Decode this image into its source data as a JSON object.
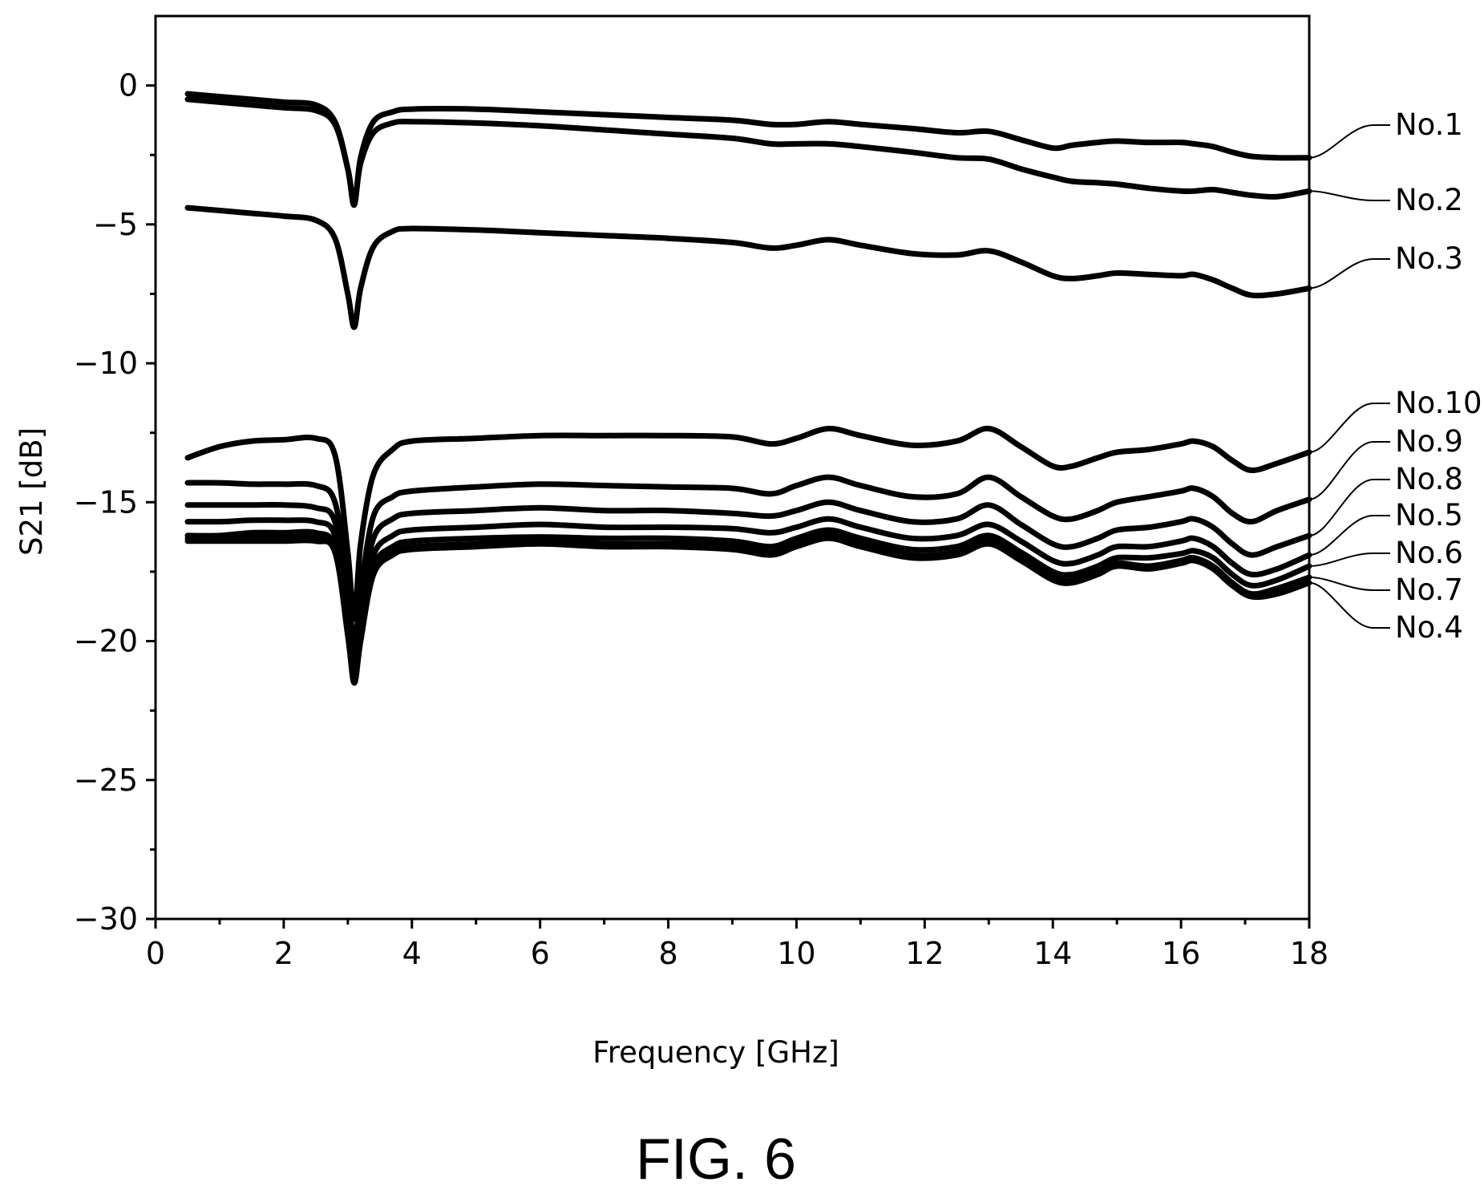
{
  "figure_caption": "FIG. 6",
  "chart_data": {
    "type": "line",
    "title": "",
    "xlabel": "Frequency [GHz]",
    "ylabel": "S21 [dB]",
    "xlim": [
      0,
      18
    ],
    "ylim": [
      -30,
      2.5
    ],
    "x_ticks": [
      0,
      2,
      4,
      6,
      8,
      10,
      12,
      14,
      16,
      18
    ],
    "x_tick_labels": [
      "0",
      "2",
      "4",
      "6",
      "8",
      "10",
      "12",
      "14",
      "16",
      "18"
    ],
    "x_minor_step": 1,
    "y_ticks": [
      0,
      -5,
      -10,
      -15,
      -20,
      -25,
      -30
    ],
    "y_tick_labels": [
      "0",
      "−5",
      "−10",
      "−15",
      "−20",
      "−25",
      "−30"
    ],
    "y_minor_step": 2.5,
    "grid": false,
    "legend": "direct labels at right",
    "x": [
      0.5,
      1.0,
      1.5,
      2.0,
      2.5,
      2.8,
      3.0,
      3.1,
      3.2,
      3.4,
      3.7,
      4.0,
      5.0,
      6.0,
      7.0,
      8.0,
      9.0,
      9.6,
      10.0,
      10.5,
      11.0,
      11.8,
      12.5,
      13.0,
      13.5,
      14.0,
      14.3,
      14.7,
      15.0,
      15.5,
      16.0,
      16.2,
      16.5,
      16.8,
      17.1,
      17.5,
      18.0
    ],
    "series": [
      {
        "name": "No.1",
        "values": [
          -0.3,
          -0.4,
          -0.5,
          -0.6,
          -0.7,
          -1.3,
          -3.0,
          -4.3,
          -2.6,
          -1.3,
          -0.95,
          -0.85,
          -0.85,
          -0.95,
          -1.05,
          -1.15,
          -1.25,
          -1.4,
          -1.4,
          -1.3,
          -1.4,
          -1.55,
          -1.7,
          -1.65,
          -1.95,
          -2.25,
          -2.15,
          -2.05,
          -2.0,
          -2.05,
          -2.05,
          -2.1,
          -2.2,
          -2.4,
          -2.55,
          -2.6,
          -2.6
        ]
      },
      {
        "name": "No.2",
        "values": [
          -0.5,
          -0.6,
          -0.7,
          -0.8,
          -0.9,
          -1.4,
          -3.0,
          -4.2,
          -2.8,
          -1.7,
          -1.35,
          -1.3,
          -1.35,
          -1.45,
          -1.6,
          -1.75,
          -1.9,
          -2.1,
          -2.1,
          -2.1,
          -2.2,
          -2.4,
          -2.6,
          -2.65,
          -3.0,
          -3.3,
          -3.45,
          -3.5,
          -3.55,
          -3.7,
          -3.8,
          -3.8,
          -3.75,
          -3.85,
          -3.95,
          -4.0,
          -3.8
        ]
      },
      {
        "name": "No.3",
        "values": [
          -4.4,
          -4.5,
          -4.6,
          -4.7,
          -4.85,
          -5.5,
          -7.5,
          -8.7,
          -7.3,
          -5.8,
          -5.25,
          -5.15,
          -5.2,
          -5.3,
          -5.4,
          -5.5,
          -5.65,
          -5.85,
          -5.75,
          -5.55,
          -5.75,
          -6.05,
          -6.1,
          -5.95,
          -6.35,
          -6.85,
          -6.95,
          -6.85,
          -6.75,
          -6.8,
          -6.85,
          -6.8,
          -7.0,
          -7.3,
          -7.55,
          -7.5,
          -7.3
        ]
      },
      {
        "name": "No.4",
        "values": [
          -16.4,
          -16.4,
          -16.4,
          -16.4,
          -16.4,
          -16.8,
          -19.8,
          -21.5,
          -20.0,
          -17.6,
          -16.9,
          -16.7,
          -16.6,
          -16.5,
          -16.6,
          -16.6,
          -16.7,
          -16.9,
          -16.6,
          -16.3,
          -16.6,
          -17.0,
          -16.9,
          -16.5,
          -17.1,
          -17.8,
          -17.9,
          -17.6,
          -17.3,
          -17.4,
          -17.2,
          -17.1,
          -17.4,
          -18.0,
          -18.4,
          -18.3,
          -17.9
        ]
      },
      {
        "name": "No.5",
        "values": [
          -15.7,
          -15.7,
          -15.65,
          -15.65,
          -15.7,
          -16.2,
          -19.0,
          -21.0,
          -19.3,
          -16.9,
          -16.2,
          -16.0,
          -15.9,
          -15.8,
          -15.9,
          -15.9,
          -15.95,
          -16.1,
          -15.9,
          -15.6,
          -15.9,
          -16.3,
          -16.2,
          -15.8,
          -16.4,
          -17.1,
          -17.2,
          -16.9,
          -16.6,
          -16.6,
          -16.4,
          -16.3,
          -16.6,
          -17.2,
          -17.6,
          -17.4,
          -16.9
        ]
      },
      {
        "name": "No.6",
        "values": [
          -16.2,
          -16.2,
          -16.1,
          -16.1,
          -16.1,
          -16.6,
          -19.4,
          -21.2,
          -19.7,
          -17.3,
          -16.6,
          -16.4,
          -16.3,
          -16.25,
          -16.3,
          -16.3,
          -16.4,
          -16.6,
          -16.3,
          -16.0,
          -16.3,
          -16.7,
          -16.6,
          -16.2,
          -16.8,
          -17.5,
          -17.6,
          -17.3,
          -17.0,
          -17.0,
          -16.85,
          -16.75,
          -17.0,
          -17.6,
          -18.0,
          -17.8,
          -17.3
        ]
      },
      {
        "name": "No.7",
        "values": [
          -16.3,
          -16.3,
          -16.25,
          -16.25,
          -16.3,
          -16.7,
          -19.6,
          -21.3,
          -19.8,
          -17.5,
          -16.8,
          -16.6,
          -16.5,
          -16.4,
          -16.5,
          -16.5,
          -16.55,
          -16.8,
          -16.5,
          -16.2,
          -16.5,
          -16.9,
          -16.8,
          -16.4,
          -17.0,
          -17.7,
          -17.8,
          -17.5,
          -17.2,
          -17.3,
          -17.1,
          -17.0,
          -17.3,
          -17.9,
          -18.3,
          -18.1,
          -17.7
        ]
      },
      {
        "name": "No.8",
        "values": [
          -15.1,
          -15.1,
          -15.1,
          -15.1,
          -15.2,
          -15.7,
          -18.6,
          -20.6,
          -18.8,
          -16.3,
          -15.6,
          -15.4,
          -15.3,
          -15.2,
          -15.3,
          -15.3,
          -15.4,
          -15.5,
          -15.3,
          -15.0,
          -15.3,
          -15.7,
          -15.6,
          -15.1,
          -15.8,
          -16.5,
          -16.6,
          -16.3,
          -16.0,
          -15.9,
          -15.7,
          -15.6,
          -15.9,
          -16.5,
          -16.9,
          -16.6,
          -16.2
        ]
      },
      {
        "name": "No.9",
        "values": [
          -14.3,
          -14.3,
          -14.35,
          -14.35,
          -14.4,
          -15.0,
          -18.0,
          -20.2,
          -18.2,
          -15.5,
          -14.8,
          -14.6,
          -14.45,
          -14.35,
          -14.4,
          -14.45,
          -14.5,
          -14.7,
          -14.4,
          -14.1,
          -14.4,
          -14.8,
          -14.7,
          -14.1,
          -14.8,
          -15.5,
          -15.6,
          -15.3,
          -15.0,
          -14.8,
          -14.6,
          -14.5,
          -14.8,
          -15.4,
          -15.7,
          -15.3,
          -14.9
        ]
      },
      {
        "name": "No.10",
        "values": [
          -13.4,
          -13.0,
          -12.8,
          -12.75,
          -12.7,
          -13.3,
          -16.8,
          -19.2,
          -16.5,
          -14.0,
          -13.1,
          -12.8,
          -12.7,
          -12.6,
          -12.6,
          -12.6,
          -12.65,
          -12.9,
          -12.7,
          -12.35,
          -12.6,
          -12.95,
          -12.8,
          -12.35,
          -13.0,
          -13.7,
          -13.7,
          -13.4,
          -13.2,
          -13.1,
          -12.9,
          -12.8,
          -13.0,
          -13.5,
          -13.85,
          -13.6,
          -13.2
        ]
      }
    ]
  }
}
